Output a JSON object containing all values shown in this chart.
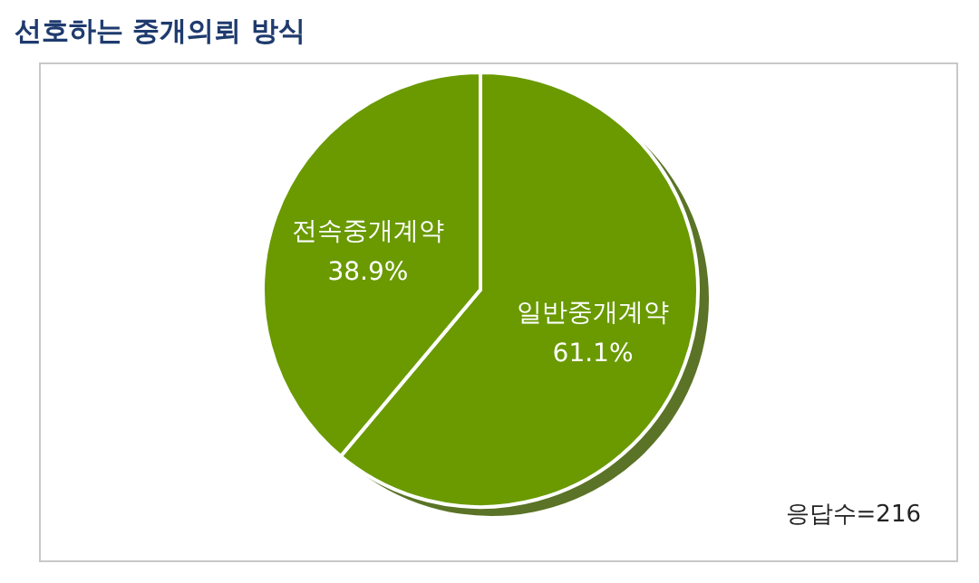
{
  "chart_data": {
    "type": "pie",
    "title": "선호하는 중개의뢰 방식",
    "categories": [
      "일반중개계약",
      "전속중개계약"
    ],
    "values": [
      61.1,
      38.9
    ],
    "colors": [
      "#6a9a00",
      "#6a9a00"
    ],
    "value_labels": [
      "61.1%",
      "38.9%"
    ],
    "legend": false,
    "annotations": [
      "응답수=216"
    ]
  }
}
